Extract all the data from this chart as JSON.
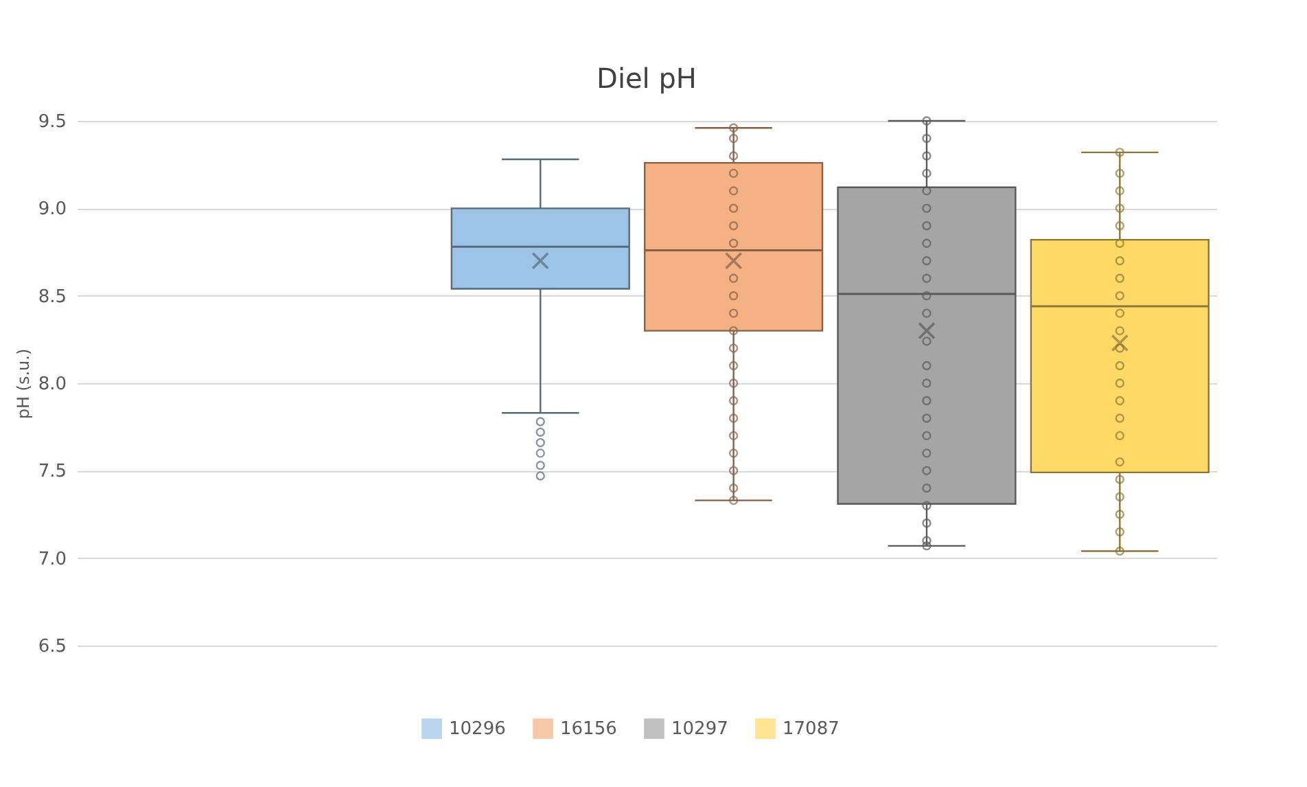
{
  "chart_data": {
    "type": "box",
    "title": "Diel pH",
    "ylabel": "pH (s.u.)",
    "categories": [
      null
    ],
    "ylim": [
      6.5,
      9.5
    ],
    "yticks": [
      {
        "value": 6.5,
        "label": "6.5"
      },
      {
        "value": 7.0,
        "label": "7.0"
      },
      {
        "value": 7.5,
        "label": "7.5"
      },
      {
        "value": 8.0,
        "label": "8.0"
      },
      {
        "value": 8.5,
        "label": "8.5"
      },
      {
        "value": 9.0,
        "label": "9.0"
      },
      {
        "value": 9.5,
        "label": "9.5"
      }
    ],
    "grid": "y",
    "legend": "bottom",
    "marker": "circle",
    "series": [
      {
        "name": "10296",
        "color": "#9dc3e6",
        "boxes": [
          {
            "low": 7.83,
            "q1": 8.54,
            "median": 8.78,
            "q3": 9.0,
            "high": 9.28,
            "mean": 8.7,
            "outliers": [
              7.78,
              7.72,
              7.66,
              7.6,
              7.53,
              7.47
            ]
          }
        ]
      },
      {
        "name": "16156",
        "color": "#f4b183",
        "boxes": [
          {
            "low": 7.33,
            "q1": 8.3,
            "median": 8.76,
            "q3": 9.26,
            "high": 9.46,
            "mean": 8.7,
            "outliers": [
              9.46,
              9.4,
              9.3,
              9.2,
              9.1,
              9.0,
              8.9,
              8.8,
              8.6,
              8.5,
              8.4,
              8.3,
              8.2,
              8.1,
              8.0,
              7.9,
              7.8,
              7.7,
              7.6,
              7.5,
              7.4,
              7.33
            ]
          }
        ]
      },
      {
        "name": "10297",
        "color": "#a5a5a5",
        "boxes": [
          {
            "low": 7.07,
            "q1": 7.31,
            "median": 8.51,
            "q3": 9.12,
            "high": 9.5,
            "mean": 8.3,
            "outliers": [
              9.5,
              9.4,
              9.3,
              9.2,
              9.1,
              9.0,
              8.9,
              8.8,
              8.7,
              8.6,
              8.5,
              8.4,
              8.24,
              8.1,
              8.0,
              7.9,
              7.8,
              7.7,
              7.6,
              7.5,
              7.4,
              7.3,
              7.2,
              7.1,
              7.07
            ]
          }
        ]
      },
      {
        "name": "17087",
        "color": "#ffd966",
        "boxes": [
          {
            "low": 7.04,
            "q1": 7.49,
            "median": 8.44,
            "q3": 8.82,
            "high": 9.32,
            "mean": 8.23,
            "outliers": [
              9.32,
              9.2,
              9.1,
              9.0,
              8.9,
              8.8,
              8.7,
              8.6,
              8.5,
              8.4,
              8.3,
              8.2,
              8.1,
              8.0,
              7.9,
              7.8,
              7.7,
              7.55,
              7.45,
              7.35,
              7.25,
              7.15,
              7.04
            ]
          }
        ]
      }
    ]
  }
}
